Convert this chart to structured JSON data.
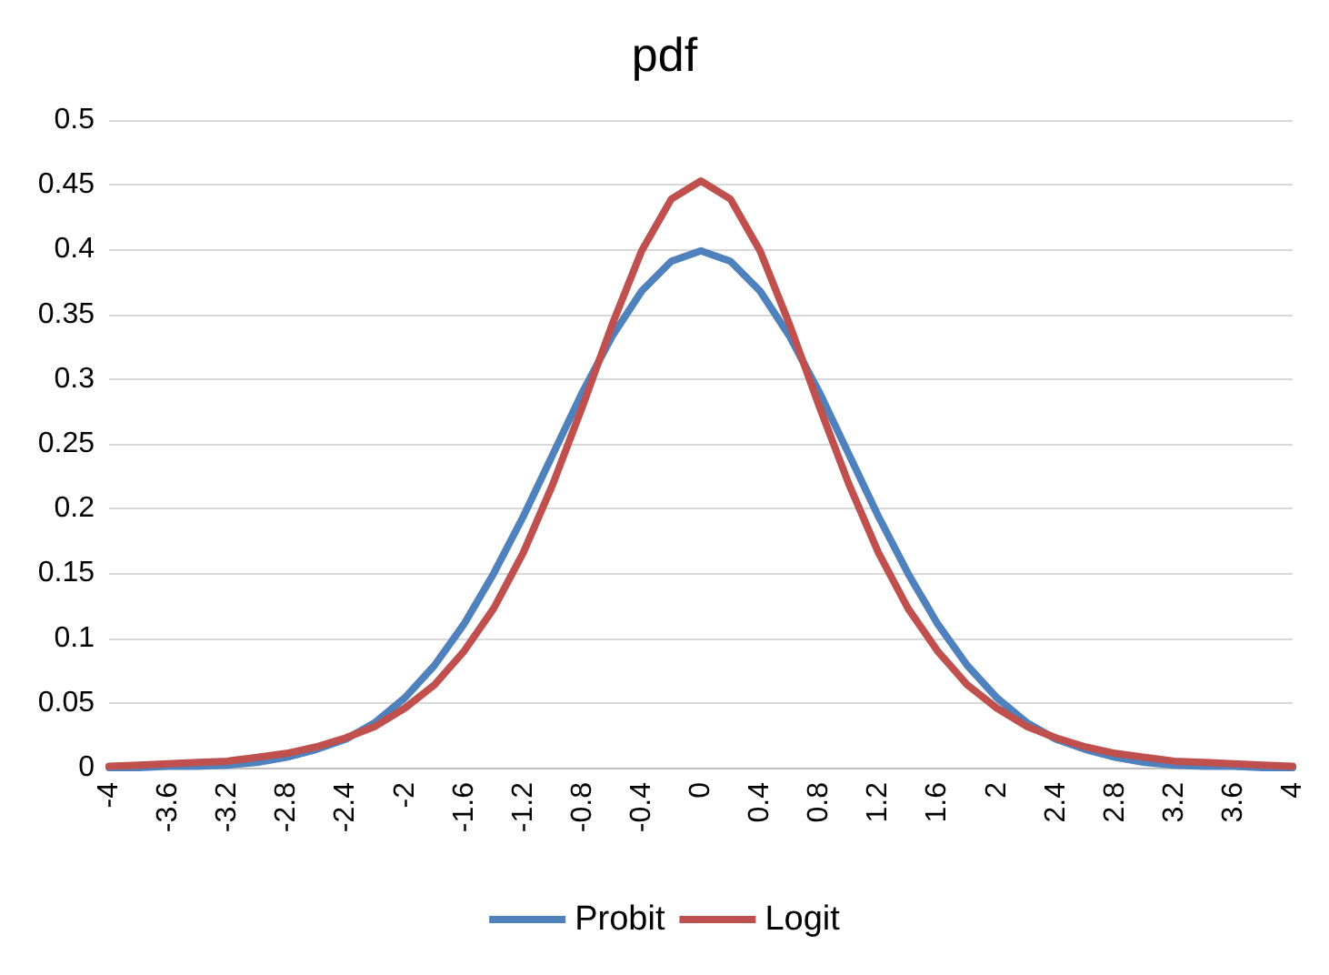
{
  "chart_data": {
    "type": "line",
    "title": "pdf",
    "x": [
      -4,
      -3.8,
      -3.6,
      -3.4,
      -3.2,
      -3,
      -2.8,
      -2.6,
      -2.4,
      -2.2,
      -2,
      -1.8,
      -1.6,
      -1.4,
      -1.2,
      -1,
      -0.8,
      -0.6,
      -0.4,
      -0.2,
      0,
      0.2,
      0.4,
      0.6,
      0.8,
      1,
      1.2,
      1.4,
      1.6,
      1.8,
      2,
      2.2,
      2.4,
      2.6,
      2.8,
      3,
      3.2,
      3.4,
      3.6,
      3.8,
      4
    ],
    "series": [
      {
        "name": "Probit",
        "color": "#4f81bd",
        "values": [
          0,
          0,
          0.001,
          0.001,
          0.002,
          0.004,
          0.008,
          0.014,
          0.022,
          0.035,
          0.054,
          0.079,
          0.111,
          0.15,
          0.194,
          0.242,
          0.29,
          0.333,
          0.368,
          0.391,
          0.399,
          0.391,
          0.368,
          0.333,
          0.29,
          0.242,
          0.194,
          0.15,
          0.111,
          0.079,
          0.054,
          0.035,
          0.022,
          0.014,
          0.008,
          0.004,
          0.002,
          0.001,
          0.001,
          0,
          0
        ]
      },
      {
        "name": "Logit",
        "color": "#c0504d",
        "values": [
          0.001,
          0.002,
          0.003,
          0.004,
          0.005,
          0.008,
          0.011,
          0.016,
          0.023,
          0.032,
          0.046,
          0.064,
          0.09,
          0.123,
          0.166,
          0.219,
          0.279,
          0.342,
          0.399,
          0.439,
          0.453,
          0.439,
          0.399,
          0.342,
          0.279,
          0.219,
          0.166,
          0.123,
          0.09,
          0.064,
          0.046,
          0.032,
          0.023,
          0.016,
          0.011,
          0.008,
          0.005,
          0.004,
          0.003,
          0.002,
          0.001
        ]
      }
    ],
    "xlim": [
      -4,
      4
    ],
    "xticks": [
      -4,
      -3.6,
      -3.2,
      -2.8,
      -2.4,
      -2,
      -1.6,
      -1.2,
      -0.8,
      -0.4,
      0,
      0.4,
      0.8,
      1.2,
      1.6,
      2,
      2.4,
      2.8,
      3.2,
      3.6,
      4
    ],
    "ylim": [
      0,
      0.5
    ],
    "yticks": [
      0,
      0.05,
      0.1,
      0.15,
      0.2,
      0.25,
      0.3,
      0.35,
      0.4,
      0.45,
      0.5
    ],
    "grid": "y",
    "legend": "bottom",
    "marker": "none",
    "line_style": "solid"
  }
}
